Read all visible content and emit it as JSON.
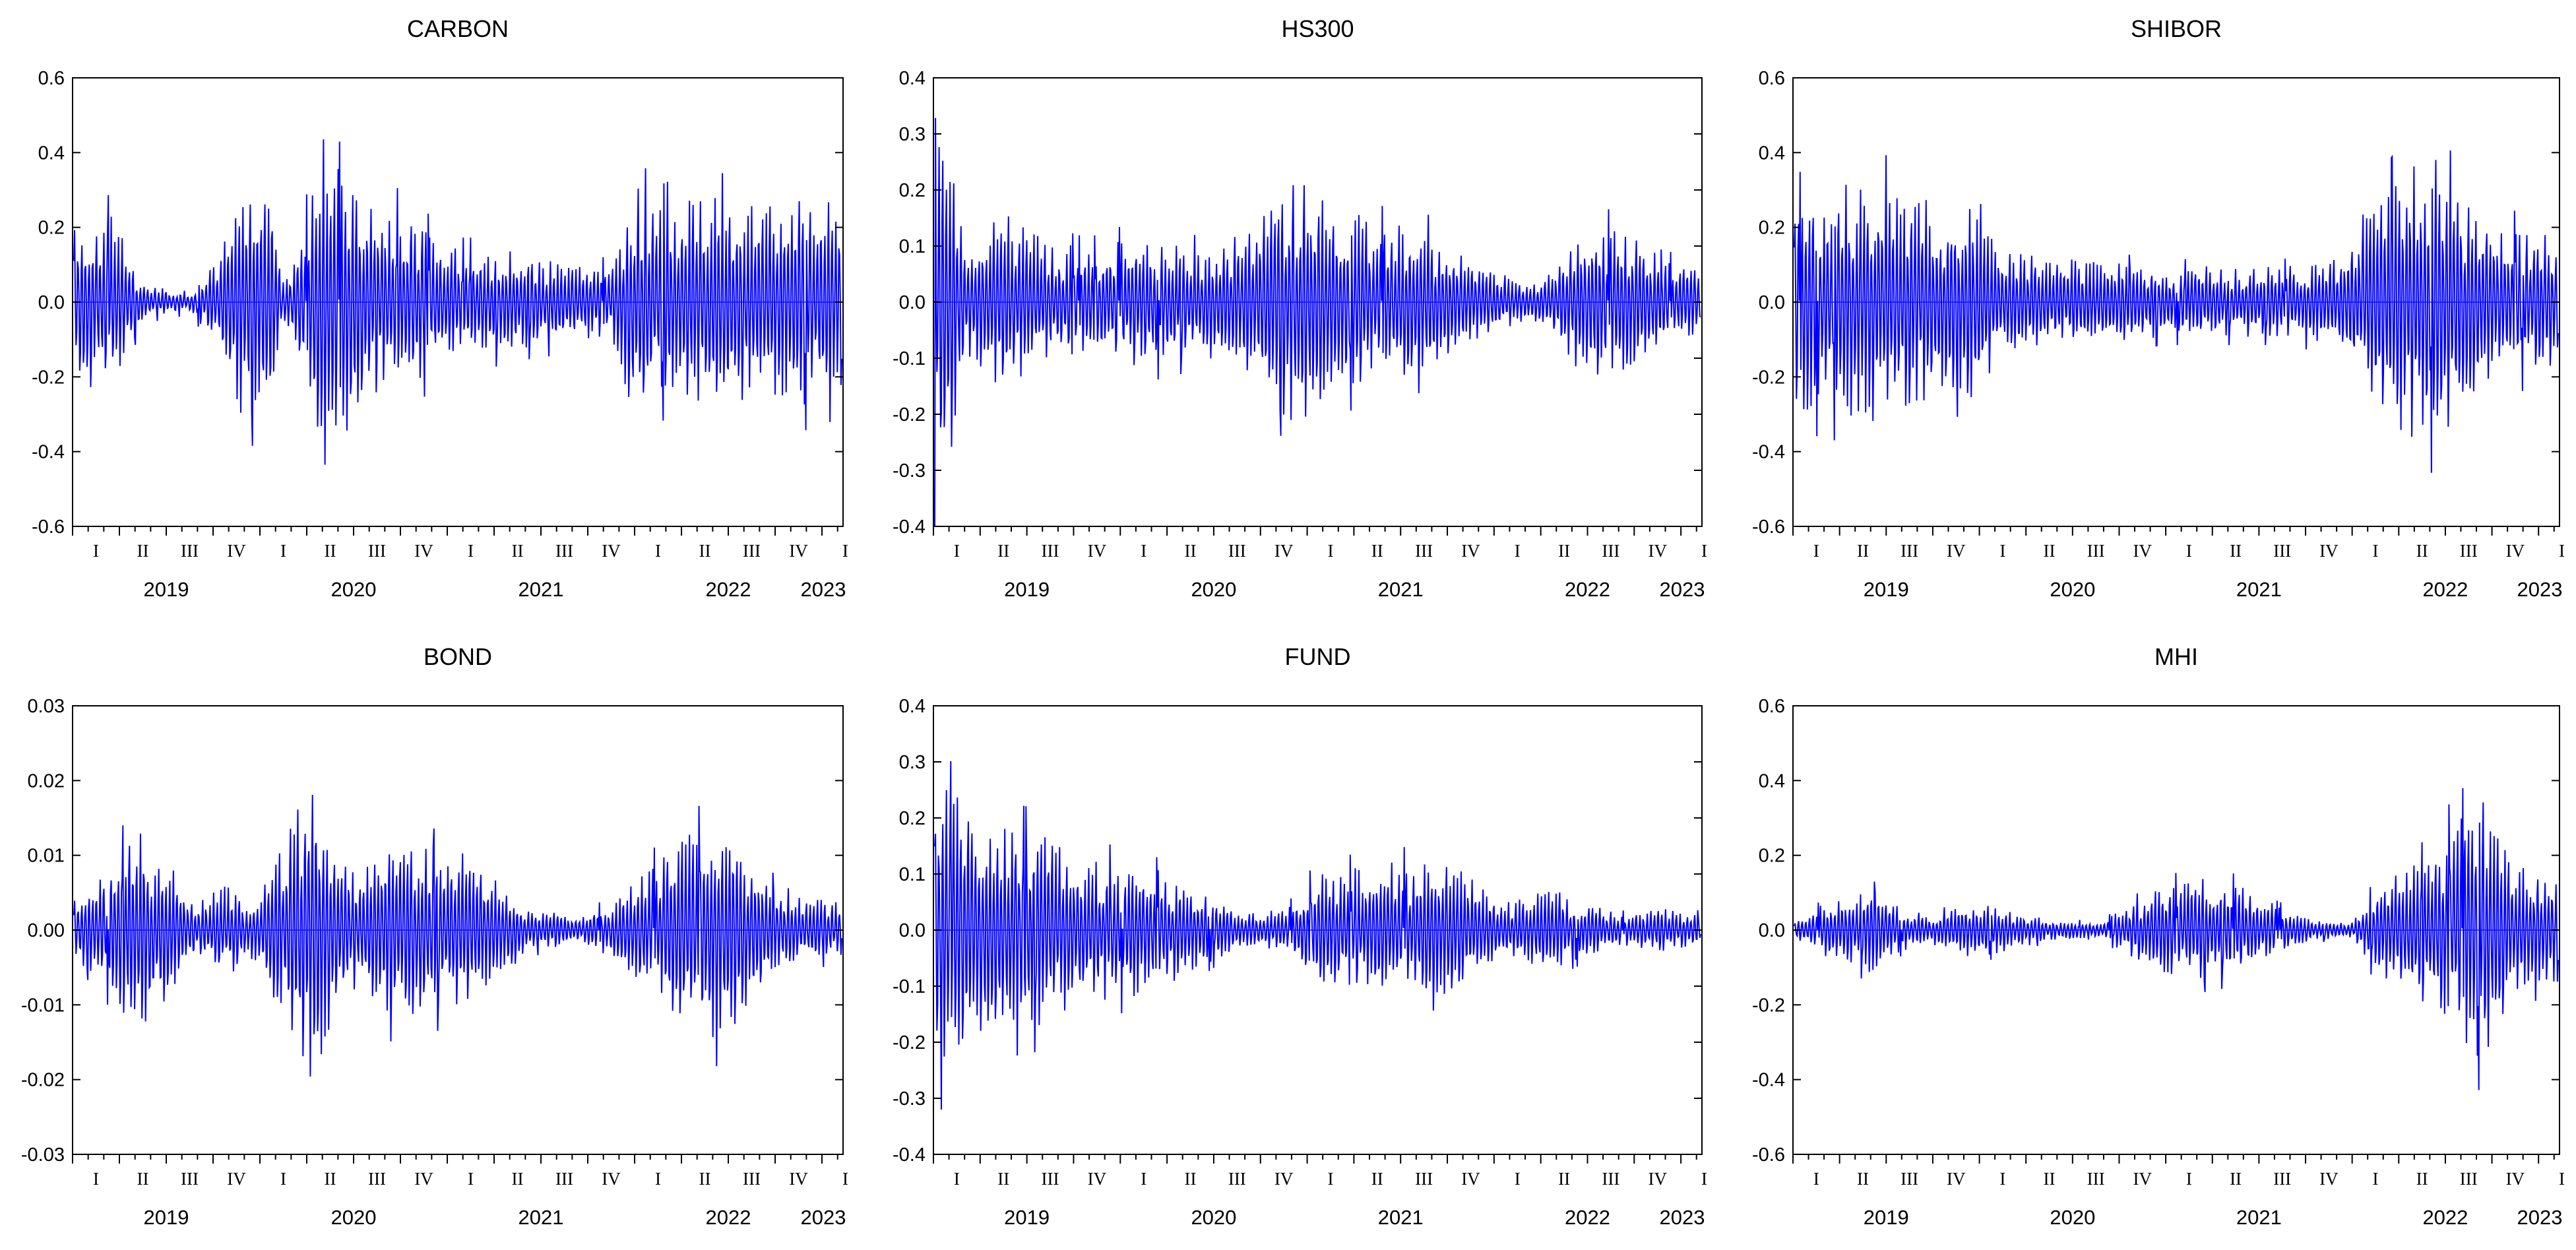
{
  "chart_data": [
    {
      "type": "line",
      "title": "CARBON",
      "series": [
        {
          "color": "#0000ff",
          "pattern": "strong-weekly-oscillation with amplitude bursts"
        }
      ],
      "ylim": [
        -0.6,
        0.6
      ],
      "yticks": [
        "0.6",
        "0.4",
        "0.2",
        "0.0",
        "-0.2",
        "-0.4",
        "-0.6"
      ],
      "quarters": [
        "I",
        "II",
        "III",
        "IV",
        "I",
        "II",
        "III",
        "IV",
        "I",
        "II",
        "III",
        "IV",
        "I",
        "II",
        "III",
        "IV",
        "I"
      ],
      "years": [
        "2019",
        "2020",
        "2021",
        "2022",
        "2023"
      ],
      "envelope": [
        [
          0,
          0.24
        ],
        [
          0.05,
          0.25
        ],
        [
          0.09,
          0.05
        ],
        [
          0.15,
          0.03
        ],
        [
          0.19,
          0.12
        ],
        [
          0.22,
          0.35
        ],
        [
          0.26,
          0.3
        ],
        [
          0.27,
          0.05
        ],
        [
          0.29,
          0.15
        ],
        [
          0.32,
          0.38
        ],
        [
          0.36,
          0.37
        ],
        [
          0.38,
          0.3
        ],
        [
          0.4,
          0.26
        ],
        [
          0.44,
          0.27
        ],
        [
          0.47,
          0.18
        ],
        [
          0.5,
          0.15
        ],
        [
          0.55,
          0.15
        ],
        [
          0.6,
          0.13
        ],
        [
          0.65,
          0.12
        ],
        [
          0.7,
          0.1
        ],
        [
          0.73,
          0.35
        ],
        [
          0.76,
          0.27
        ],
        [
          0.8,
          0.3
        ],
        [
          0.85,
          0.3
        ],
        [
          0.9,
          0.27
        ],
        [
          0.95,
          0.3
        ],
        [
          1.0,
          0.27
        ]
      ],
      "grid": false,
      "legend": "none"
    },
    {
      "type": "line",
      "title": "HS300",
      "series": [
        {
          "color": "#0000ff"
        }
      ],
      "ylim": [
        -0.4,
        0.4
      ],
      "yticks": [
        "0.4",
        "0.3",
        "0.2",
        "0.1",
        "0.0",
        "-0.1",
        "-0.2",
        "-0.3",
        "-0.4"
      ],
      "quarters": [
        "I",
        "II",
        "III",
        "IV",
        "I",
        "II",
        "III",
        "IV",
        "I",
        "II",
        "III",
        "IV",
        "I",
        "II",
        "III",
        "IV",
        "I"
      ],
      "years": [
        "2019",
        "2020",
        "2021",
        "2022",
        "2023"
      ],
      "envelope": [
        [
          0,
          0.36
        ],
        [
          0.02,
          0.3
        ],
        [
          0.04,
          0.1
        ],
        [
          0.09,
          0.17
        ],
        [
          0.14,
          0.12
        ],
        [
          0.2,
          0.1
        ],
        [
          0.25,
          0.12
        ],
        [
          0.3,
          0.12
        ],
        [
          0.35,
          0.1
        ],
        [
          0.42,
          0.15
        ],
        [
          0.47,
          0.24
        ],
        [
          0.52,
          0.18
        ],
        [
          0.58,
          0.15
        ],
        [
          0.64,
          0.14
        ],
        [
          0.7,
          0.08
        ],
        [
          0.76,
          0.04
        ],
        [
          0.8,
          0.05
        ],
        [
          0.85,
          0.15
        ],
        [
          0.9,
          0.14
        ],
        [
          0.95,
          0.08
        ],
        [
          1.0,
          0.07
        ]
      ],
      "grid": false,
      "legend": "none"
    },
    {
      "type": "line",
      "title": "SHIBOR",
      "series": [
        {
          "color": "#0000ff"
        }
      ],
      "ylim": [
        -0.6,
        0.6
      ],
      "yticks": [
        "0.6",
        "0.4",
        "0.2",
        "0.0",
        "-0.2",
        "-0.4",
        "-0.6"
      ],
      "quarters": [
        "I",
        "II",
        "III",
        "IV",
        "I",
        "II",
        "III",
        "IV",
        "I",
        "II",
        "III",
        "IV",
        "I",
        "II",
        "III",
        "IV",
        "I"
      ],
      "years": [
        "2019",
        "2020",
        "2021",
        "2022",
        "2023"
      ],
      "envelope": [
        [
          0,
          0.3
        ],
        [
          0.05,
          0.32
        ],
        [
          0.1,
          0.35
        ],
        [
          0.15,
          0.33
        ],
        [
          0.2,
          0.25
        ],
        [
          0.24,
          0.3
        ],
        [
          0.27,
          0.15
        ],
        [
          0.33,
          0.12
        ],
        [
          0.4,
          0.12
        ],
        [
          0.48,
          0.1
        ],
        [
          0.56,
          0.1
        ],
        [
          0.64,
          0.1
        ],
        [
          0.7,
          0.12
        ],
        [
          0.75,
          0.26
        ],
        [
          0.8,
          0.38
        ],
        [
          0.84,
          0.4
        ],
        [
          0.88,
          0.3
        ],
        [
          0.93,
          0.22
        ],
        [
          1.0,
          0.18
        ]
      ],
      "grid": false,
      "legend": "none"
    },
    {
      "type": "line",
      "title": "BOND",
      "series": [
        {
          "color": "#0000ff"
        }
      ],
      "ylim": [
        -0.03,
        0.03
      ],
      "yticks": [
        "0.03",
        "0.02",
        "0.01",
        "0.00",
        "-0.01",
        "-0.02",
        "-0.03"
      ],
      "quarters": [
        "I",
        "II",
        "III",
        "IV",
        "I",
        "II",
        "III",
        "IV",
        "I",
        "II",
        "III",
        "IV",
        "I",
        "II",
        "III",
        "IV",
        "I"
      ],
      "years": [
        "2019",
        "2020",
        "2021",
        "2022",
        "2023"
      ],
      "envelope": [
        [
          0,
          0.004
        ],
        [
          0.04,
          0.008
        ],
        [
          0.08,
          0.015
        ],
        [
          0.12,
          0.01
        ],
        [
          0.16,
          0.004
        ],
        [
          0.2,
          0.007
        ],
        [
          0.23,
          0.003
        ],
        [
          0.27,
          0.012
        ],
        [
          0.31,
          0.022
        ],
        [
          0.34,
          0.012
        ],
        [
          0.37,
          0.008
        ],
        [
          0.41,
          0.013
        ],
        [
          0.46,
          0.012
        ],
        [
          0.51,
          0.011
        ],
        [
          0.56,
          0.006
        ],
        [
          0.6,
          0.003
        ],
        [
          0.66,
          0.002
        ],
        [
          0.7,
          0.004
        ],
        [
          0.74,
          0.008
        ],
        [
          0.79,
          0.013
        ],
        [
          0.84,
          0.016
        ],
        [
          0.88,
          0.012
        ],
        [
          0.92,
          0.005
        ],
        [
          1.0,
          0.004
        ]
      ],
      "grid": false,
      "legend": "none"
    },
    {
      "type": "line",
      "title": "FUND",
      "series": [
        {
          "color": "#0000ff"
        }
      ],
      "ylim": [
        -0.4,
        0.4
      ],
      "yticks": [
        "0.4",
        "0.3",
        "0.2",
        "0.1",
        "0.0",
        "-0.1",
        "-0.2",
        "-0.3",
        "-0.4"
      ],
      "quarters": [
        "I",
        "II",
        "III",
        "IV",
        "I",
        "II",
        "III",
        "IV",
        "I",
        "II",
        "III",
        "IV",
        "I",
        "II",
        "III",
        "IV",
        "I"
      ],
      "years": [
        "2019",
        "2020",
        "2021",
        "2022",
        "2023"
      ],
      "envelope": [
        [
          0,
          0.29
        ],
        [
          0.03,
          0.25
        ],
        [
          0.08,
          0.2
        ],
        [
          0.13,
          0.19
        ],
        [
          0.2,
          0.14
        ],
        [
          0.28,
          0.12
        ],
        [
          0.35,
          0.07
        ],
        [
          0.4,
          0.03
        ],
        [
          0.46,
          0.04
        ],
        [
          0.5,
          0.11
        ],
        [
          0.56,
          0.12
        ],
        [
          0.62,
          0.13
        ],
        [
          0.68,
          0.12
        ],
        [
          0.74,
          0.05
        ],
        [
          0.8,
          0.08
        ],
        [
          0.85,
          0.05
        ],
        [
          0.9,
          0.03
        ],
        [
          0.95,
          0.04
        ],
        [
          1.0,
          0.03
        ]
      ],
      "grid": false,
      "legend": "none"
    },
    {
      "type": "line",
      "title": "MHI",
      "series": [
        {
          "color": "#0000ff"
        }
      ],
      "ylim": [
        -0.6,
        0.6
      ],
      "yticks": [
        "0.6",
        "0.4",
        "0.2",
        "0.0",
        "-0.2",
        "-0.4",
        "-0.6"
      ],
      "quarters": [
        "I",
        "II",
        "III",
        "IV",
        "I",
        "II",
        "III",
        "IV",
        "I",
        "II",
        "III",
        "IV",
        "I",
        "II",
        "III",
        "IV",
        "I"
      ],
      "years": [
        "2019",
        "2020",
        "2021",
        "2022",
        "2023"
      ],
      "envelope": [
        [
          0,
          0.02
        ],
        [
          0.05,
          0.09
        ],
        [
          0.1,
          0.12
        ],
        [
          0.14,
          0.06
        ],
        [
          0.18,
          0.04
        ],
        [
          0.23,
          0.08
        ],
        [
          0.28,
          0.06
        ],
        [
          0.33,
          0.03
        ],
        [
          0.4,
          0.02
        ],
        [
          0.46,
          0.1
        ],
        [
          0.52,
          0.15
        ],
        [
          0.58,
          0.13
        ],
        [
          0.63,
          0.07
        ],
        [
          0.68,
          0.03
        ],
        [
          0.73,
          0.02
        ],
        [
          0.76,
          0.12
        ],
        [
          0.82,
          0.2
        ],
        [
          0.86,
          0.3
        ],
        [
          0.9,
          0.38
        ],
        [
          0.94,
          0.18
        ],
        [
          1.0,
          0.15
        ]
      ],
      "grid": false,
      "legend": "none"
    }
  ]
}
